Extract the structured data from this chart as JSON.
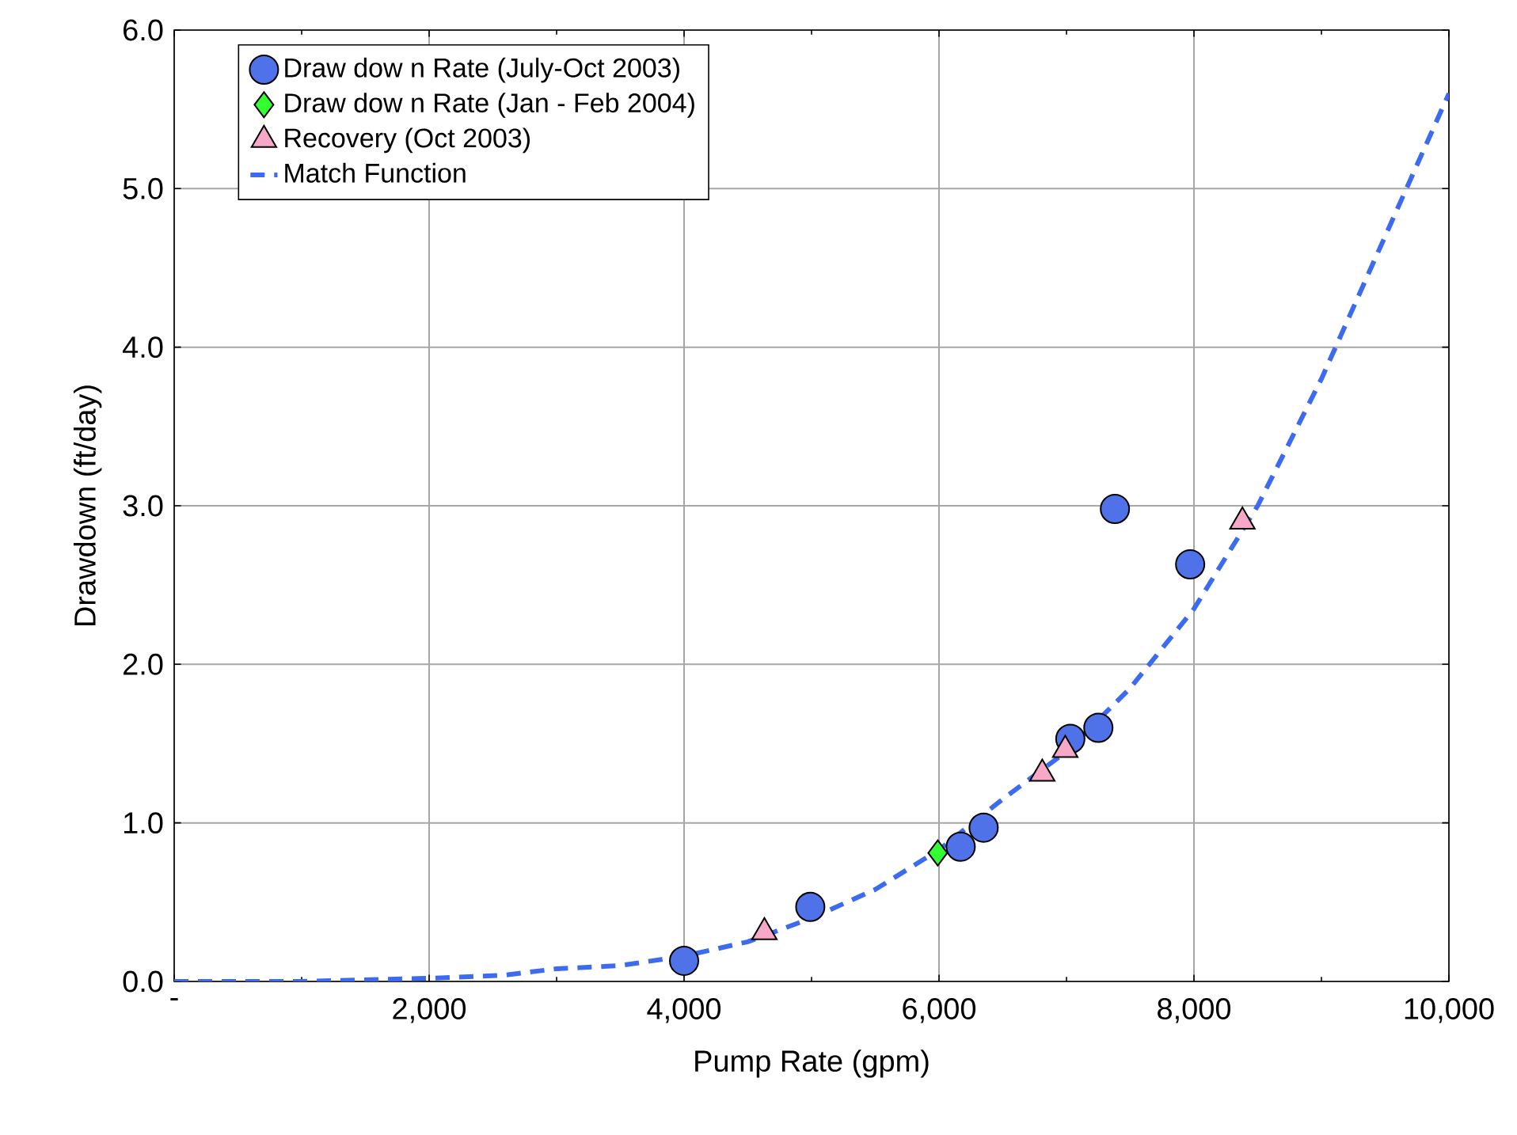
{
  "chart_data": {
    "type": "scatter",
    "xlabel": "Pump Rate (gpm)",
    "ylabel": "Drawdown (ft/day)",
    "xlim": [
      0,
      10000
    ],
    "ylim": [
      0,
      6
    ],
    "xticks": [
      {
        "value": 0,
        "label": "-"
      },
      {
        "value": 2000,
        "label": "2,000"
      },
      {
        "value": 4000,
        "label": "4,000"
      },
      {
        "value": 6000,
        "label": "6,000"
      },
      {
        "value": 8000,
        "label": "8,000"
      },
      {
        "value": 10000,
        "label": "10,000"
      }
    ],
    "yticks": [
      {
        "value": 0,
        "label": "0.0"
      },
      {
        "value": 1,
        "label": "1.0"
      },
      {
        "value": 2,
        "label": "2.0"
      },
      {
        "value": 3,
        "label": "3.0"
      },
      {
        "value": 4,
        "label": "4.0"
      },
      {
        "value": 5,
        "label": "5.0"
      },
      {
        "value": 6,
        "label": "6.0"
      }
    ],
    "grid": true,
    "legend": "top left",
    "series": [
      {
        "name": "Draw dow n Rate (July-Oct 2003)",
        "marker": "circle",
        "color": "#4f72e8",
        "x": [
          4000,
          4990,
          6170,
          6350,
          7030,
          7250,
          7380,
          7970
        ],
        "values": [
          0.13,
          0.47,
          0.85,
          0.97,
          1.53,
          1.6,
          2.98,
          2.63
        ]
      },
      {
        "name": "Draw dow n Rate (Jan - Feb 2004)",
        "marker": "diamond",
        "color": "#33ff33",
        "x": [
          5990
        ],
        "values": [
          0.81
        ]
      },
      {
        "name": "Recovery (Oct 2003)",
        "marker": "triangle",
        "color": "#f7a8c8",
        "x": [
          4630,
          6810,
          6990,
          8380
        ],
        "values": [
          0.31,
          1.31,
          1.46,
          2.9
        ]
      },
      {
        "name": "Match Function",
        "type": "line",
        "line_style": "dashed",
        "color": "#3d6bf0",
        "x": [
          0,
          1000,
          2000,
          2600,
          3000,
          3500,
          4000,
          4500,
          5000,
          5500,
          6000,
          6500,
          7000,
          7500,
          8000,
          8500,
          9000,
          9500,
          10000
        ],
        "values": [
          0,
          0,
          0.02,
          0.04,
          0.08,
          0.1,
          0.16,
          0.25,
          0.4,
          0.58,
          0.83,
          1.15,
          1.45,
          1.85,
          2.35,
          3.0,
          3.8,
          4.7,
          5.6
        ]
      }
    ]
  }
}
